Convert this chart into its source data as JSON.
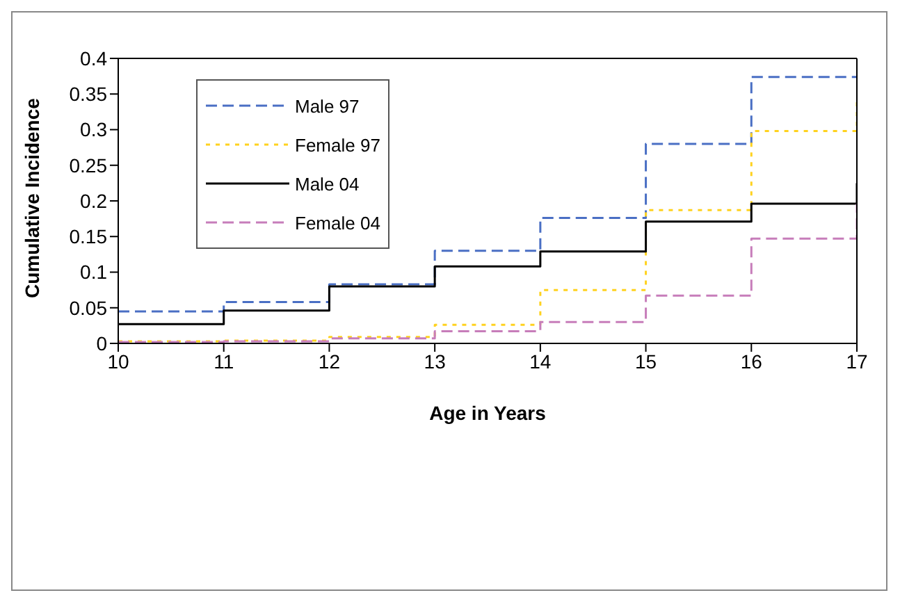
{
  "chart_data": {
    "type": "step",
    "xlabel": "Age in Years",
    "ylabel": "Cumulative  Incidence",
    "x": [
      10,
      11,
      12,
      13,
      14,
      15,
      16,
      17
    ],
    "series": [
      {
        "name": "Male 97",
        "color": "#4a6fc4",
        "line_style": "dashed",
        "values": [
          0.045,
          0.058,
          0.083,
          0.13,
          0.176,
          0.28,
          0.374,
          0.374
        ]
      },
      {
        "name": "Female 97",
        "color": "#ffd21f",
        "line_style": "dotted",
        "values": [
          0.003,
          0.004,
          0.009,
          0.026,
          0.075,
          0.187,
          0.298,
          0.343
        ]
      },
      {
        "name": "Male 04",
        "color": "#000000",
        "line_style": "solid",
        "values": [
          0.027,
          0.046,
          0.08,
          0.108,
          0.129,
          0.171,
          0.196,
          0.225
        ]
      },
      {
        "name": "Female 04",
        "color": "#c77dba",
        "line_style": "dashed",
        "values": [
          0.002,
          0.003,
          0.007,
          0.017,
          0.03,
          0.067,
          0.147,
          0.196
        ]
      }
    ],
    "xlim": [
      10,
      17
    ],
    "xticks": [
      10,
      11,
      12,
      13,
      14,
      15,
      16,
      17
    ],
    "ylim": [
      0,
      0.4
    ],
    "yticks": [
      0,
      0.05,
      0.1,
      0.15,
      0.2,
      0.25,
      0.3,
      0.35,
      0.4
    ],
    "grid": false,
    "legend": "top left",
    "marker": "none"
  }
}
